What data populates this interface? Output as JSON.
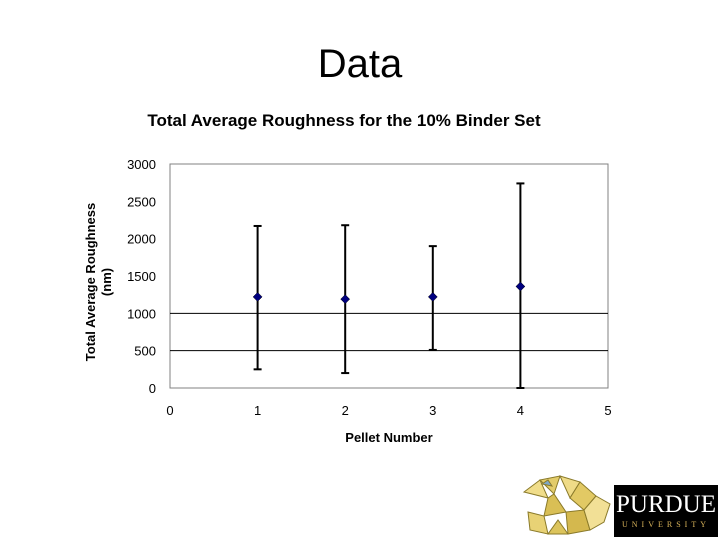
{
  "slide": {
    "title": "Data"
  },
  "logo": {
    "name": "PURDUE",
    "subtitle": "UNIVERSITY"
  },
  "chart_data": {
    "type": "scatter",
    "title": "Total Average Roughness for the 10% Binder Set",
    "xlabel": "Pellet Number",
    "ylabel_lines": [
      "Total Average Roughness",
      "(nm)"
    ],
    "xlim": [
      0,
      5
    ],
    "ylim": [
      0,
      3000
    ],
    "xticks": [
      0,
      1,
      2,
      3,
      4,
      5
    ],
    "yticks": [
      0,
      500,
      1000,
      1500,
      2000,
      2500,
      3000
    ],
    "gridlines": [
      500,
      1000
    ],
    "marker": "diamond",
    "marker_color": "#00007f",
    "points": [
      {
        "x": 1,
        "y": 1220,
        "err_low": 250,
        "err_high": 2170
      },
      {
        "x": 2,
        "y": 1190,
        "err_low": 200,
        "err_high": 2180
      },
      {
        "x": 3,
        "y": 1220,
        "err_low": 510,
        "err_high": 1900
      },
      {
        "x": 4,
        "y": 1360,
        "err_low": 0,
        "err_high": 2740
      }
    ],
    "legend": "none"
  }
}
